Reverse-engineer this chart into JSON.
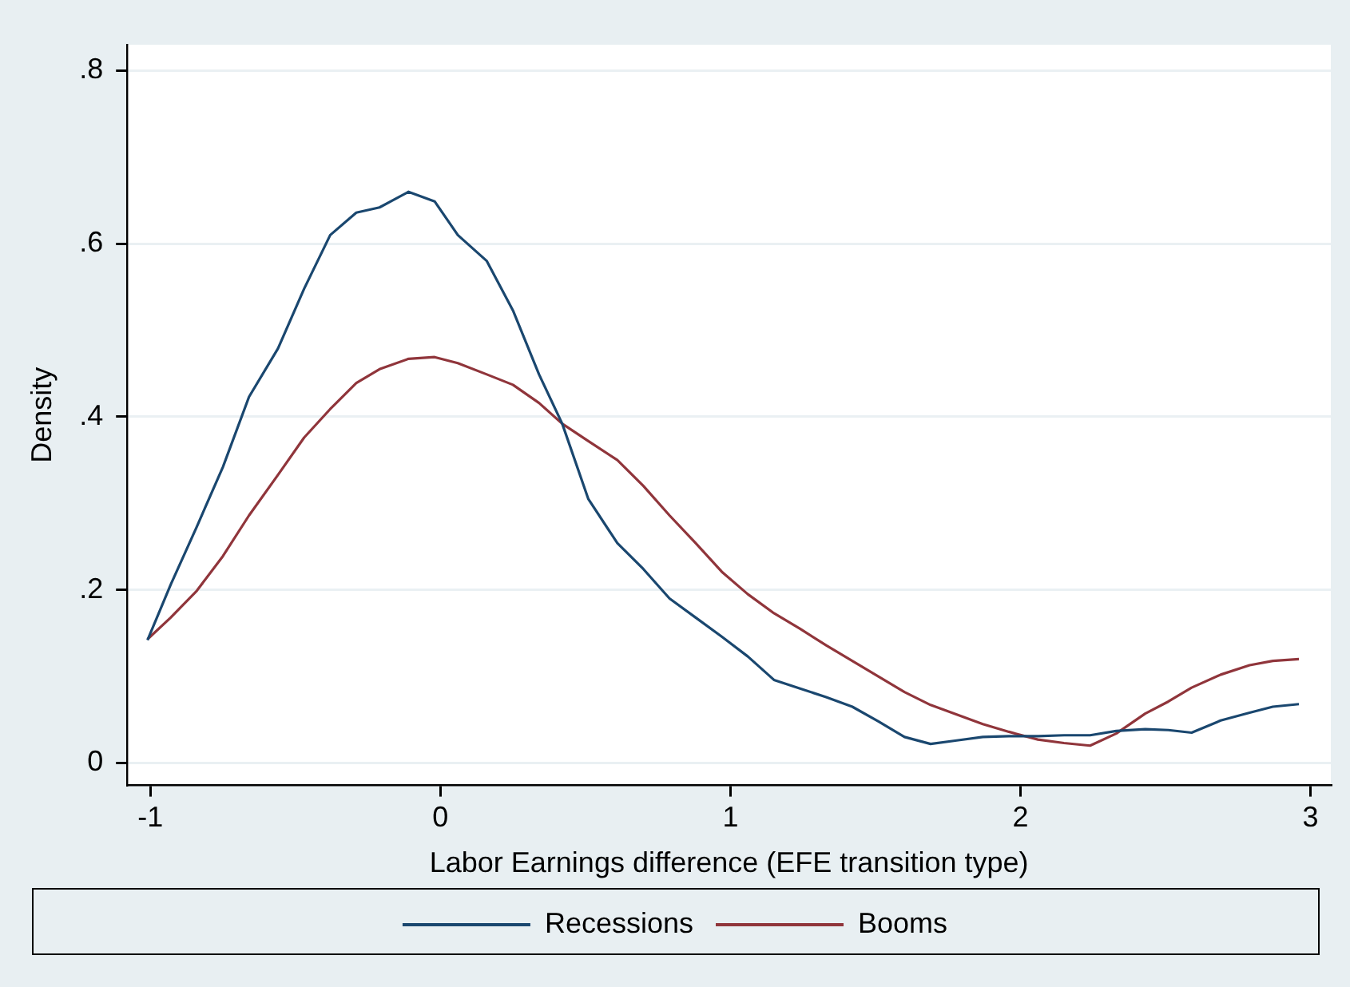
{
  "chart_data": {
    "type": "line",
    "xlabel": "Labor Earnings difference (EFE transition type)",
    "ylabel": "Density",
    "x": [
      -1.01,
      -0.93,
      -0.84,
      -0.75,
      -0.66,
      -0.56,
      -0.47,
      -0.38,
      -0.29,
      -0.21,
      -0.11,
      -0.02,
      0.06,
      0.16,
      0.25,
      0.34,
      0.42,
      0.51,
      0.61,
      0.7,
      0.79,
      0.88,
      0.97,
      1.06,
      1.15,
      1.24,
      1.33,
      1.42,
      1.51,
      1.6,
      1.69,
      1.78,
      1.87,
      1.96,
      2.06,
      2.15,
      2.24,
      2.33,
      2.43,
      2.51,
      2.59,
      2.69,
      2.79,
      2.87,
      2.96
    ],
    "series": [
      {
        "name": "Recessions",
        "color": "#1a476f",
        "values": [
          0.142,
          0.206,
          0.273,
          0.342,
          0.423,
          0.479,
          0.548,
          0.61,
          0.636,
          0.642,
          0.66,
          0.649,
          0.61,
          0.58,
          0.523,
          0.449,
          0.392,
          0.305,
          0.254,
          0.224,
          0.19,
          0.168,
          0.146,
          0.123,
          0.096,
          0.086,
          0.076,
          0.065,
          0.048,
          0.03,
          0.022,
          0.026,
          0.03,
          0.031,
          0.031,
          0.032,
          0.032,
          0.037,
          0.039,
          0.038,
          0.035,
          0.049,
          0.058,
          0.065,
          0.068
        ]
      },
      {
        "name": "Booms",
        "color": "#90353b",
        "values": [
          0.143,
          0.168,
          0.199,
          0.239,
          0.286,
          0.333,
          0.376,
          0.409,
          0.439,
          0.455,
          0.467,
          0.469,
          0.462,
          0.449,
          0.437,
          0.416,
          0.392,
          0.372,
          0.35,
          0.32,
          0.286,
          0.254,
          0.221,
          0.195,
          0.173,
          0.155,
          0.136,
          0.118,
          0.1,
          0.082,
          0.067,
          0.056,
          0.045,
          0.036,
          0.027,
          0.023,
          0.02,
          0.034,
          0.057,
          0.071,
          0.087,
          0.102,
          0.113,
          0.118,
          0.12
        ]
      }
    ],
    "xlim": [
      -1.08,
      3.07
    ],
    "xticks": [
      -1,
      0,
      1,
      2,
      3
    ],
    "ylim": [
      -0.026,
      0.83
    ],
    "yticks": [
      0,
      {
        "value": 0.2,
        "label": ".2"
      },
      {
        "value": 0.4,
        "label": ".4"
      },
      {
        "value": 0.6,
        "label": ".6"
      },
      {
        "value": 0.8,
        "label": ".8"
      }
    ],
    "grid": "y",
    "legend": "bottom",
    "marker": "none",
    "line_style": "solid"
  }
}
